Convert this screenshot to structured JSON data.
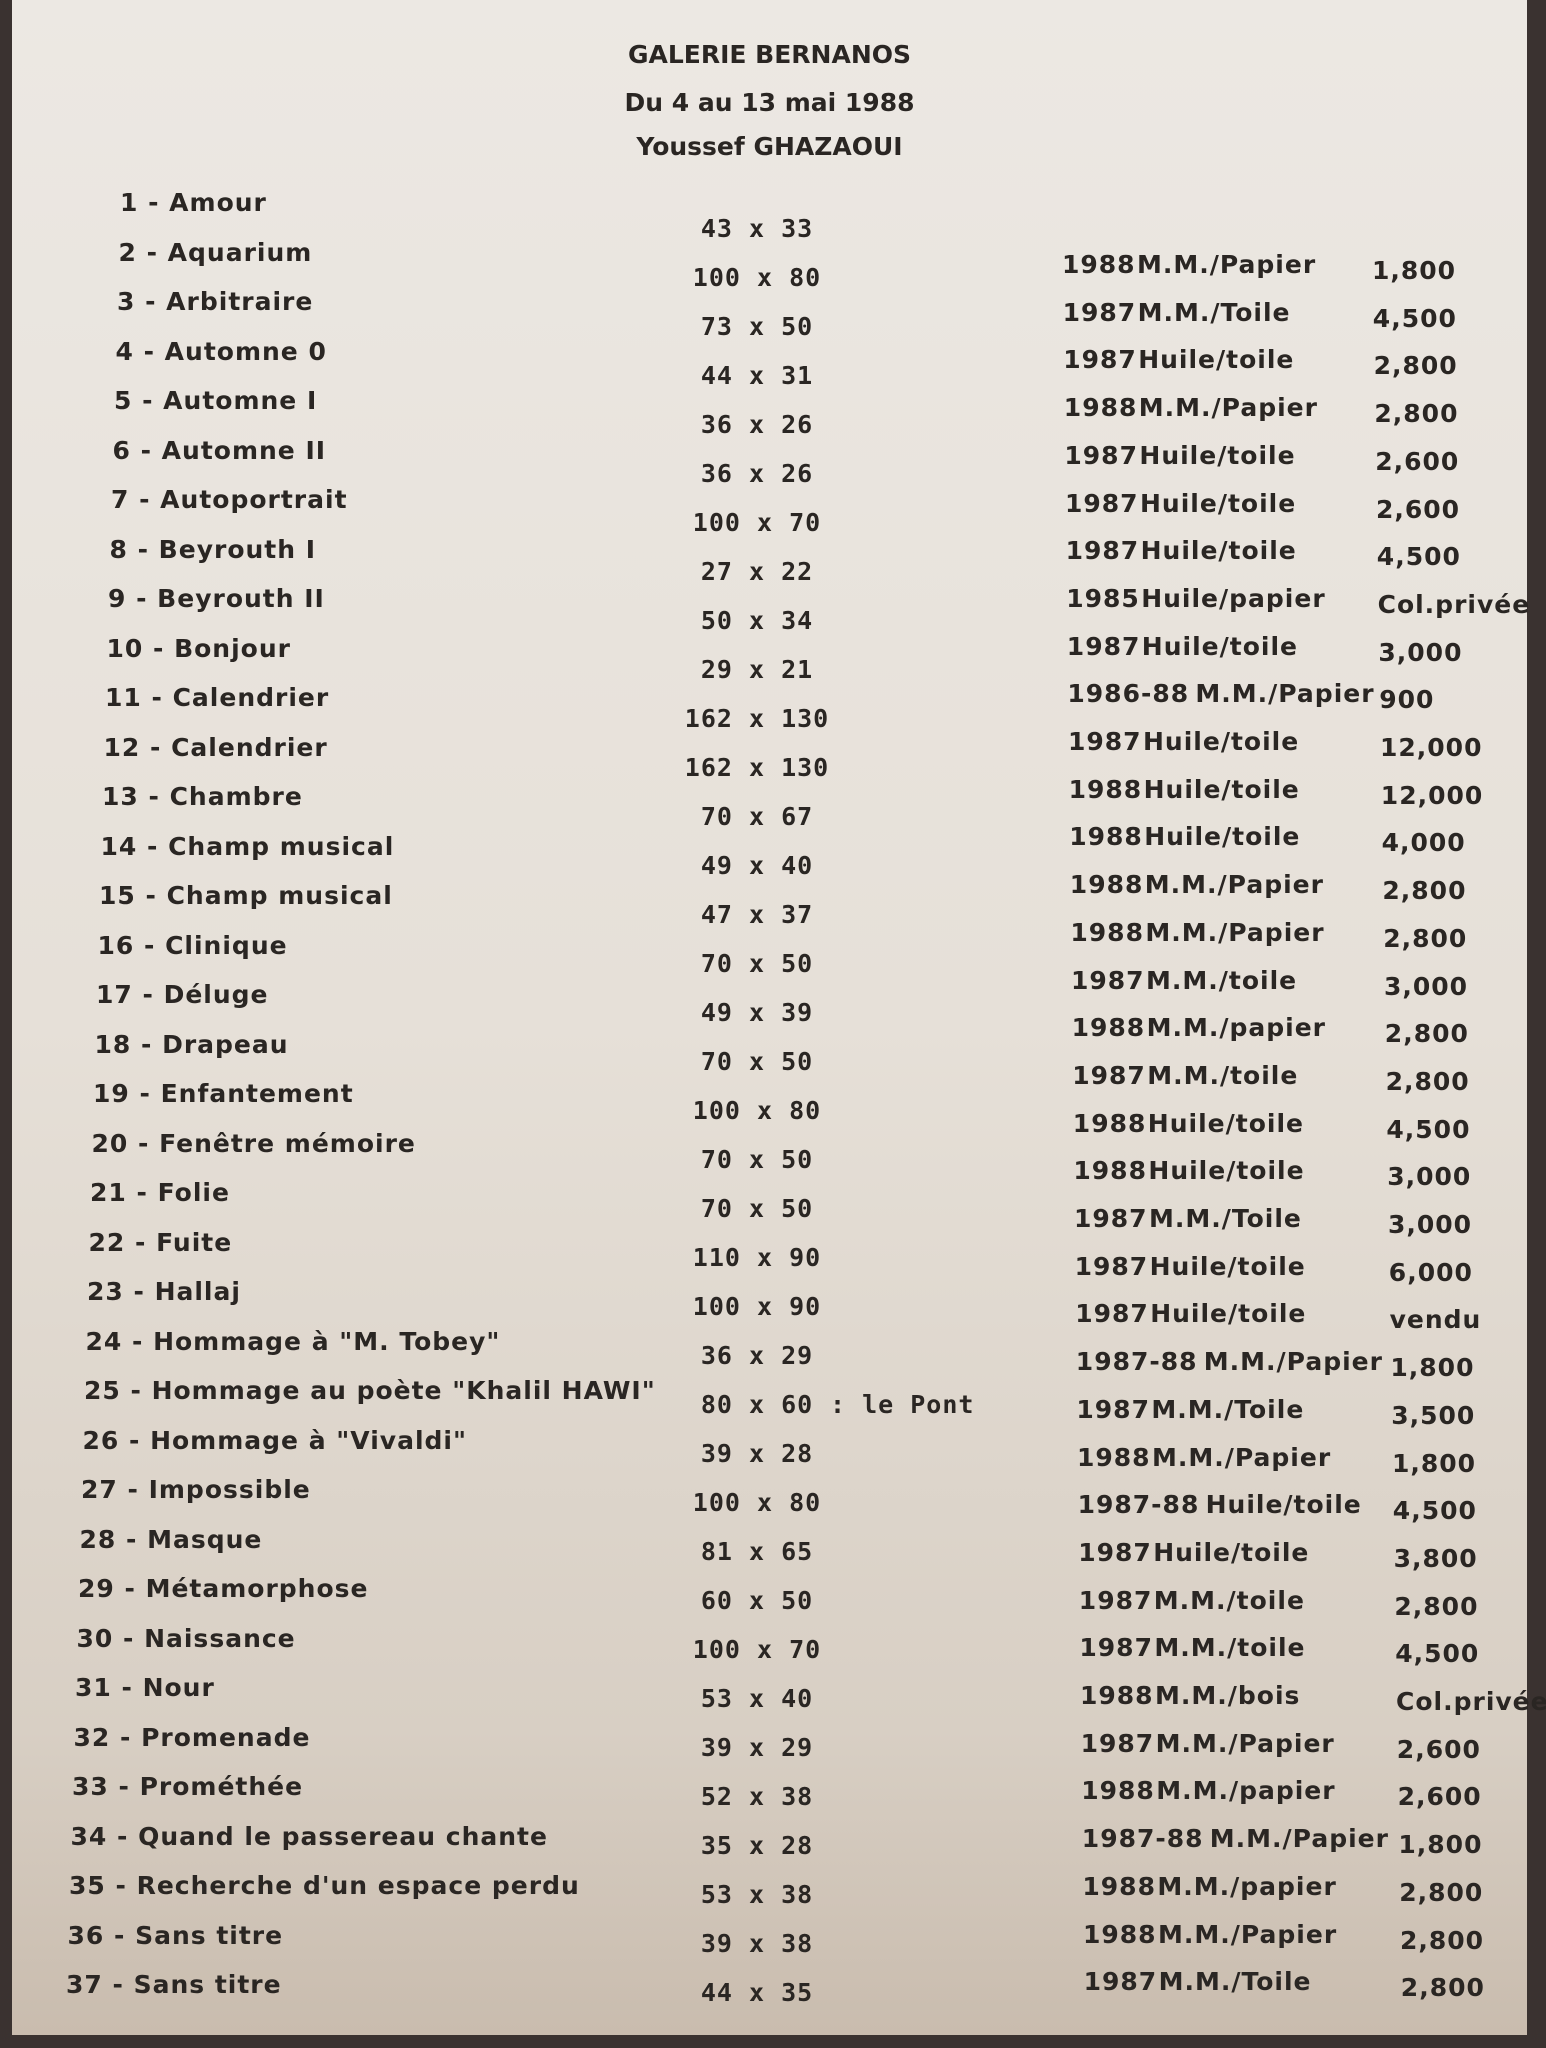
{
  "header": {
    "gallery": "GALERIE BERNANOS",
    "dates": "Du 4 au 13 mai 1988",
    "artist": "Youssef GHAZAOUI"
  },
  "rows": [
    {
      "item": "1 - Amour",
      "dims": "43 x 33",
      "year": "1988",
      "medium": "M.M./Papier",
      "price": "1,800"
    },
    {
      "item": "2 - Aquarium",
      "dims": "100 x 80",
      "year": "1987",
      "medium": "M.M./Toile",
      "price": "4,500"
    },
    {
      "item": "3 - Arbitraire",
      "dims": "73 x 50",
      "year": "1987",
      "medium": "Huile/toile",
      "price": "2,800"
    },
    {
      "item": "4 - Automne 0",
      "dims": "44 x 31",
      "year": "1988",
      "medium": "M.M./Papier",
      "price": "2,800"
    },
    {
      "item": "5 - Automne I",
      "dims": "36 x 26",
      "year": "1987",
      "medium": "Huile/toile",
      "price": "2,600"
    },
    {
      "item": "6 - Automne II",
      "dims": "36 x 26",
      "year": "1987",
      "medium": "Huile/toile",
      "price": "2,600"
    },
    {
      "item": "7 - Autoportrait",
      "dims": "100 x 70",
      "year": "1987",
      "medium": "Huile/toile",
      "price": "4,500"
    },
    {
      "item": "8 - Beyrouth I",
      "dims": "27 x 22",
      "year": "1985",
      "medium": "Huile/papier",
      "price": "Col.privée"
    },
    {
      "item": "9 - Beyrouth II",
      "dims": "50 x 34",
      "year": "1987",
      "medium": "Huile/toile",
      "price": "3,000"
    },
    {
      "item": "10 - Bonjour",
      "dims": "29 x 21",
      "year": "1986-88",
      "medium": "M.M./Papier",
      "price": "900"
    },
    {
      "item": "11 - Calendrier",
      "dims": "162 x 130",
      "year": "1987",
      "medium": "Huile/toile",
      "price": "12,000"
    },
    {
      "item": "12 - Calendrier",
      "dims": "162 x 130",
      "year": "1988",
      "medium": "Huile/toile",
      "price": "12,000"
    },
    {
      "item": "13 - Chambre",
      "dims": "70 x 67",
      "year": "1988",
      "medium": "Huile/toile",
      "price": "4,000"
    },
    {
      "item": "14 - Champ musical",
      "dims": "49 x 40",
      "year": "1988",
      "medium": "M.M./Papier",
      "price": "2,800"
    },
    {
      "item": "15 - Champ musical",
      "dims": "47 x 37",
      "year": "1988",
      "medium": "M.M./Papier",
      "price": "2,800"
    },
    {
      "item": "16 - Clinique",
      "dims": "70 x 50",
      "year": "1987",
      "medium": "M.M./toile",
      "price": "3,000"
    },
    {
      "item": "17 - Déluge",
      "dims": "49 x 39",
      "year": "1988",
      "medium": "M.M./papier",
      "price": "2,800"
    },
    {
      "item": "18 - Drapeau",
      "dims": "70 x 50",
      "year": "1987",
      "medium": "M.M./toile",
      "price": "2,800"
    },
    {
      "item": "19 - Enfantement",
      "dims": "100 x 80",
      "year": "1988",
      "medium": "Huile/toile",
      "price": "4,500"
    },
    {
      "item": "20 - Fenêtre mémoire",
      "dims": "70 x 50",
      "year": "1988",
      "medium": "Huile/toile",
      "price": "3,000"
    },
    {
      "item": "21 - Folie",
      "dims": "70 x 50",
      "year": "1987",
      "medium": "M.M./Toile",
      "price": "3,000"
    },
    {
      "item": "22 - Fuite",
      "dims": "110 x 90",
      "year": "1987",
      "medium": "Huile/toile",
      "price": "6,000"
    },
    {
      "item": "23 - Hallaj",
      "dims": "100 x 90",
      "year": "1987",
      "medium": "Huile/toile",
      "price": "vendu"
    },
    {
      "item": "24 - Hommage à \"M. Tobey\"",
      "dims": "36 x 29",
      "year": "1987-88",
      "medium": "M.M./Papier",
      "price": "1,800"
    },
    {
      "item": "25 - Hommage au poète \"Khalil HAWI\"",
      "dims": "80 x 60",
      "note": ": le Pont",
      "year": "1987",
      "medium": "M.M./Toile",
      "price": "3,500"
    },
    {
      "item": "26 - Hommage à \"Vivaldi\"",
      "dims": "39 x 28",
      "year": "1988",
      "medium": "M.M./Papier",
      "price": "1,800"
    },
    {
      "item": "27 - Impossible",
      "dims": "100 x 80",
      "year": "1987-88",
      "medium": "Huile/toile",
      "price": "4,500"
    },
    {
      "item": "28 - Masque",
      "dims": "81 x 65",
      "year": "1987",
      "medium": "Huile/toile",
      "price": "3,800"
    },
    {
      "item": "29 - Métamorphose",
      "dims": "60 x 50",
      "year": "1987",
      "medium": "M.M./toile",
      "price": "2,800"
    },
    {
      "item": "30 - Naissance",
      "dims": "100 x 70",
      "year": "1987",
      "medium": "M.M./toile",
      "price": "4,500"
    },
    {
      "item": "31 - Nour",
      "dims": "53 x 40",
      "year": "1988",
      "medium": "M.M./bois",
      "price": "Col.privée"
    },
    {
      "item": "32 - Promenade",
      "dims": "39 x 29",
      "year": "1987",
      "medium": "M.M./Papier",
      "price": "2,600"
    },
    {
      "item": "33 - Prométhée",
      "dims": "52 x 38",
      "year": "1988",
      "medium": "M.M./papier",
      "price": "2,600"
    },
    {
      "item": "34 - Quand le passereau chante",
      "dims": "35 x 28",
      "year": "1987-88",
      "medium": "M.M./Papier",
      "price": "1,800"
    },
    {
      "item": "35 - Recherche d'un espace perdu",
      "dims": "53 x 38",
      "year": "1988",
      "medium": "M.M./papier",
      "price": "2,800"
    },
    {
      "item": "36 - Sans titre",
      "dims": "39 x 38",
      "year": "1988",
      "medium": "M.M./Papier",
      "price": "2,800"
    },
    {
      "item": "37 - Sans titre",
      "dims": "44 x 35",
      "year": "1987",
      "medium": "M.M./Toile",
      "price": "2,800"
    }
  ]
}
